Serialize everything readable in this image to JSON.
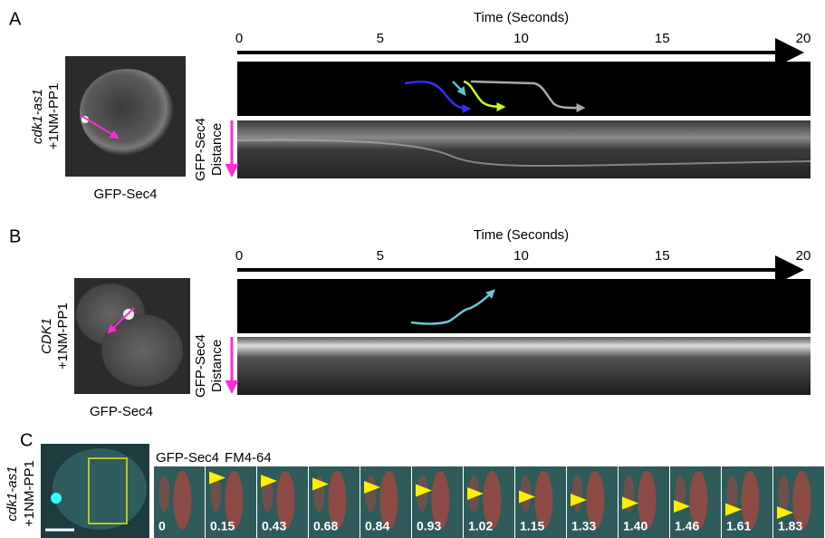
{
  "panels": [
    {
      "label": "A",
      "genotype": "cdk1-as1",
      "treatment": "+1NM-PP1",
      "image_label": "GFP-Sec4",
      "time_axis": {
        "title": "Time (Seconds)",
        "xlim": [
          0,
          20
        ],
        "xticks": [
          0,
          5,
          10,
          15,
          20
        ]
      },
      "kymograph_axis": {
        "line1": "GFP-Sec4",
        "line2": "Distance"
      }
    },
    {
      "label": "B",
      "genotype": "CDK1",
      "treatment": "+1NM-PP1",
      "image_label": "GFP-Sec4",
      "time_axis": {
        "title": "Time (Seconds)",
        "xlim": [
          0,
          20
        ],
        "xticks": [
          0,
          5,
          10,
          15,
          20
        ]
      },
      "kymograph_axis": {
        "line1": "GFP-Sec4",
        "line2": "Distance"
      }
    },
    {
      "label": "C",
      "genotype": "cdk1-as1",
      "treatment": "+1NM-PP1",
      "channels": [
        {
          "name": "GFP-Sec4",
          "color": "#33e0e0"
        },
        {
          "name": "FM4-64",
          "color": "#ff3a2a"
        }
      ],
      "frame_times": [
        "0",
        "0.15",
        "0.43",
        "0.68",
        "0.84",
        "0.93",
        "1.02",
        "1.15",
        "1.33",
        "1.40",
        "1.46",
        "1.61",
        "1.83"
      ]
    }
  ]
}
